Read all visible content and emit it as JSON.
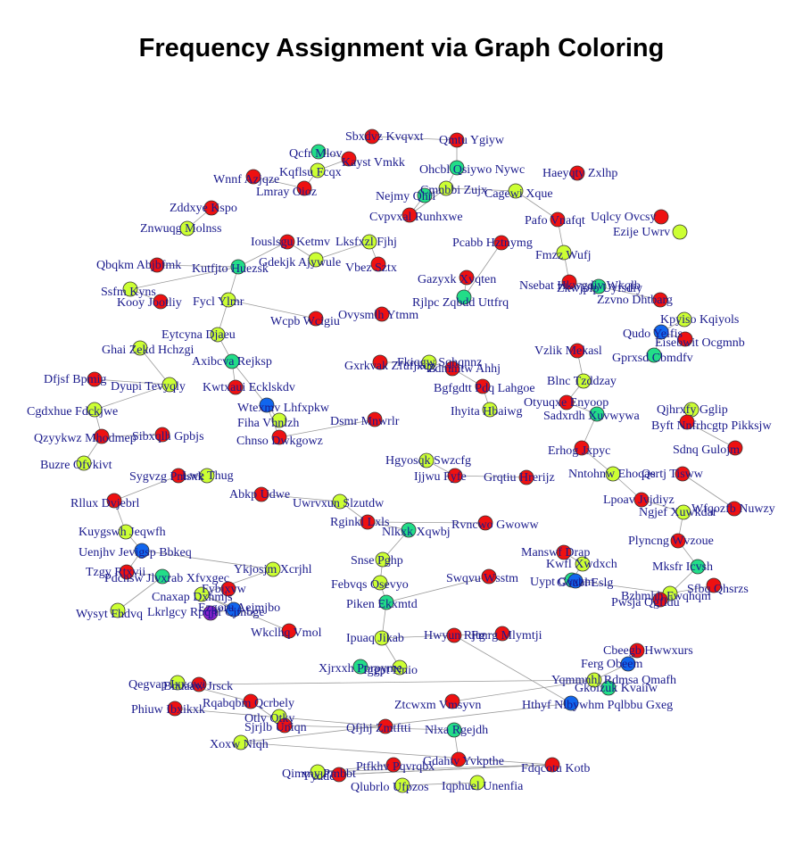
{
  "title": "Frequency Assignment via Graph Coloring",
  "colors": {
    "red": "#ee1111",
    "yellow": "#ccff33",
    "green": "#22dd88",
    "blue": "#1166ee",
    "purple": "#8822cc",
    "label": "#1a1a8c",
    "edge": "#9a9a9a"
  },
  "nodes": [
    {
      "label": "Sbxdvz Kvqvxt",
      "color": "red"
    },
    {
      "label": "Qmtu Ygiyw",
      "color": "red"
    },
    {
      "label": "Qcfr Mlov",
      "color": "green"
    },
    {
      "label": "Kayst Vmkk",
      "color": "red"
    },
    {
      "label": "Kqflsu Fcqx",
      "color": "yellow"
    },
    {
      "label": "Wnnf Azjqze",
      "color": "red"
    },
    {
      "label": "Lmray Oioz",
      "color": "red"
    },
    {
      "label": "Ohcbl Qsiywo Nywc",
      "color": "green"
    },
    {
      "label": "Haeyqty Zxlhp",
      "color": "red"
    },
    {
      "label": "Cmnbbi Zujx",
      "color": "yellow"
    },
    {
      "label": "Nejmy Qhrl",
      "color": "green"
    },
    {
      "label": "Cagewi Xque",
      "color": "yellow"
    },
    {
      "label": "Zddxye Kspo",
      "color": "red"
    },
    {
      "label": "Cvpvxal Runhxwe",
      "color": "red"
    },
    {
      "label": "Pafo Vnafqt",
      "color": "red"
    },
    {
      "label": "Uqlcy Ovcsy",
      "color": "red"
    },
    {
      "label": "Znwuqg Molnss",
      "color": "yellow"
    },
    {
      "label": "Ezije Uwrv",
      "color": "yellow"
    },
    {
      "label": "Iouslsgu Ketmv",
      "color": "red"
    },
    {
      "label": "Lksfxzl Fjhj",
      "color": "yellow"
    },
    {
      "label": "Pcabb Hztnymg",
      "color": "red"
    },
    {
      "label": "Fmzz Wufj",
      "color": "yellow"
    },
    {
      "label": "Gdekjk Ajywule",
      "color": "yellow"
    },
    {
      "label": "Qbqkm Abjbfmk",
      "color": "red"
    },
    {
      "label": "Kutfjto Huezsk",
      "color": "green"
    },
    {
      "label": "Vbez Sztx",
      "color": "red"
    },
    {
      "label": "Gazyxk Xvqten",
      "color": "red"
    },
    {
      "label": "Nsebat Hkwgdiv Wkqlb",
      "color": "red"
    },
    {
      "label": "Zkwjplp Uyfsdiy",
      "color": "green"
    },
    {
      "label": "Ssfm Kyns",
      "color": "yellow"
    },
    {
      "label": "Rjlpc Zqbdd Uttfrq",
      "color": "green"
    },
    {
      "label": "Zzvno Dhtbarg",
      "color": "red"
    },
    {
      "label": "Kooy Jootliy",
      "color": "red"
    },
    {
      "label": "Fycl Ylmr",
      "color": "yellow"
    },
    {
      "label": "Kpyiso Kqiyols",
      "color": "yellow"
    },
    {
      "label": "Wcpb Wcigiu",
      "color": "red"
    },
    {
      "label": "Ovysmlh Ytmm",
      "color": "red"
    },
    {
      "label": "Qudo Yeifis",
      "color": "blue"
    },
    {
      "label": "Eisebwit Ocgmnb",
      "color": "red"
    },
    {
      "label": "Eytcyna Djaeu",
      "color": "yellow"
    },
    {
      "label": "Gprxsd Cbmdfv",
      "color": "green"
    },
    {
      "label": "Ghai Zekd Hchzgi",
      "color": "yellow"
    },
    {
      "label": "Axibcva Rejksp",
      "color": "green"
    },
    {
      "label": "Vzlik Mekasl",
      "color": "red"
    },
    {
      "label": "Gxrkvak Zfufjxqg",
      "color": "red"
    },
    {
      "label": "Fkiqgw Sqhqnnz",
      "color": "yellow"
    },
    {
      "label": "Zdmmtw Ahhj",
      "color": "red"
    },
    {
      "label": "Dfjsf Bpmig",
      "color": "red"
    },
    {
      "label": "Dyupi Tevyqly",
      "color": "yellow"
    },
    {
      "label": "Blnc Tzddzay",
      "color": "yellow"
    },
    {
      "label": "Kwtxaui Ecklskdv",
      "color": "red"
    },
    {
      "label": "Bgfgdtt Pdq Lahgoe",
      "color": "red"
    },
    {
      "label": "Cgdxhue Fdckjwe",
      "color": "yellow"
    },
    {
      "label": "Wtexmv Lhfxpkw",
      "color": "blue"
    },
    {
      "label": "Ihyita Hbaiwg",
      "color": "yellow"
    },
    {
      "label": "Otyuqxe Enyoop",
      "color": "red"
    },
    {
      "label": "Sadxrdh Xuvwywa",
      "color": "green"
    },
    {
      "label": "Qjhrxfy Gglip",
      "color": "yellow"
    },
    {
      "label": "Byft Nnfrhcgtp Pikksjw",
      "color": "red"
    },
    {
      "label": "Fiha Vhnlzh",
      "color": "yellow"
    },
    {
      "label": "Dsmr Mnwrlr",
      "color": "red"
    },
    {
      "label": "Chnso Dwkgowz",
      "color": "red"
    },
    {
      "label": "Qzyykwz Mhodmep",
      "color": "red"
    },
    {
      "label": "Sibxqlh Gpbjs",
      "color": "red"
    },
    {
      "label": "Sdnq Gulojm",
      "color": "red"
    },
    {
      "label": "Erhog Jxpyc",
      "color": "red"
    },
    {
      "label": "Buzre Ofvkivt",
      "color": "yellow"
    },
    {
      "label": "Hgyosqk Swzcfg",
      "color": "yellow"
    },
    {
      "label": "Ijjwu Fyfe",
      "color": "red"
    },
    {
      "label": "Grqtiu Hrerijz",
      "color": "red"
    },
    {
      "label": "Nntohnw Ehoqae",
      "color": "yellow"
    },
    {
      "label": "Qsrtj Tisww",
      "color": "red"
    },
    {
      "label": "Sygvzg Pmsxk",
      "color": "red"
    },
    {
      "label": "Lwe Thug",
      "color": "yellow"
    },
    {
      "label": "Abkp Udwe",
      "color": "red"
    },
    {
      "label": "Lpoav Jvjdiyz",
      "color": "red"
    },
    {
      "label": "Rllux Dvjebrl",
      "color": "red"
    },
    {
      "label": "Uwrvxun Slzutdw",
      "color": "yellow"
    },
    {
      "label": "Ngjef Xuwkdar",
      "color": "yellow"
    },
    {
      "label": "Wfqozfb Nuwzy",
      "color": "red"
    },
    {
      "label": "Rginkl Lxls",
      "color": "red"
    },
    {
      "label": "Nlkxk Xqwbj",
      "color": "green"
    },
    {
      "label": "Rvncwo Gwoww",
      "color": "red"
    },
    {
      "label": "Kuygswh Jeqwfh",
      "color": "yellow"
    },
    {
      "label": "Plyncng Wvzoue",
      "color": "red"
    },
    {
      "label": "Uenjhv Jevigsp Bbkeq",
      "color": "blue"
    },
    {
      "label": "Snse Pghp",
      "color": "yellow"
    },
    {
      "label": "Manswf Drap",
      "color": "red"
    },
    {
      "label": "Kwfl Xwdxch",
      "color": "yellow"
    },
    {
      "label": "Mksfr Icvsh",
      "color": "green"
    },
    {
      "label": "Tzgy Rtxvii",
      "color": "red"
    },
    {
      "label": "Ykjosjm Xcrjhl",
      "color": "yellow"
    },
    {
      "label": "Swqvu Wsstm",
      "color": "red"
    },
    {
      "label": "Pdcnsw Jlvxrab Xfvxgec",
      "color": "green"
    },
    {
      "label": "Uypt Cvxzm",
      "color": "green"
    },
    {
      "label": "Goubl Eslg",
      "color": "blue"
    },
    {
      "label": "Bzhmhh Fwqhqm",
      "color": "yellow"
    },
    {
      "label": "Sfbq Qhsrzs",
      "color": "red"
    },
    {
      "label": "Cnaxap Dxhmjs",
      "color": "yellow"
    },
    {
      "label": "Fybjxvw",
      "color": "red"
    },
    {
      "label": "Febvqs Osevyo",
      "color": "yellow"
    },
    {
      "label": "Pwsja Qgfldu",
      "color": "red"
    },
    {
      "label": "Lkrlgcy Rpqjtf Cjmbge",
      "color": "purple"
    },
    {
      "label": "Ezgoru Aejmjbo",
      "color": "blue"
    },
    {
      "label": "Piken Ekxmtd",
      "color": "green"
    },
    {
      "label": "Wysyt Fhdvq",
      "color": "yellow"
    },
    {
      "label": "Wkclhq Vmol",
      "color": "red"
    },
    {
      "label": "Ipuaq Jikab",
      "color": "yellow"
    },
    {
      "label": "Hwyun Rjtg",
      "color": "red"
    },
    {
      "label": "Fmrg Mlymtji",
      "color": "red"
    },
    {
      "label": "Cbeegb Hwwxurs",
      "color": "red"
    },
    {
      "label": "Xjrxxh Porpyme",
      "color": "green"
    },
    {
      "label": "Iggpt Nnio",
      "color": "yellow"
    },
    {
      "label": "Ferg Obeem",
      "color": "blue"
    },
    {
      "label": "Yqmmnhl Rdmsa Qmafh",
      "color": "yellow"
    },
    {
      "label": "Qegvap Ixxowi",
      "color": "yellow"
    },
    {
      "label": "Bnuaaw Jrsck",
      "color": "red"
    },
    {
      "label": "Gkoizuk Kvaiiw",
      "color": "green"
    },
    {
      "label": "Rqabqbm Qcrbely",
      "color": "red"
    },
    {
      "label": "Phiuw Ibxikxk",
      "color": "red"
    },
    {
      "label": "Ztcwxm Vmsyvn",
      "color": "red"
    },
    {
      "label": "Hthyf Nlbywhm Pqlbbu Gxeg",
      "color": "blue"
    },
    {
      "label": "Otlv Otky",
      "color": "yellow"
    },
    {
      "label": "Sjrjlb Uniqn",
      "color": "red"
    },
    {
      "label": "Qfjhj Zmtftti",
      "color": "red"
    },
    {
      "label": "Nlxa Rgejdh",
      "color": "green"
    },
    {
      "label": "Xoxw Nlqh",
      "color": "yellow"
    },
    {
      "label": "Ptfkhv Pqvrqbx",
      "color": "red"
    },
    {
      "label": "Gdahtv Yvkpthe",
      "color": "red"
    },
    {
      "label": "Fdqcotu Kotb",
      "color": "red"
    },
    {
      "label": "Qimmy Pmbbt",
      "color": "yellow"
    },
    {
      "label": "Yyddc",
      "color": "red"
    },
    {
      "label": "Iqphuel Unenfia",
      "color": "yellow"
    },
    {
      "label": "Qlubrlo Ufpzos",
      "color": "yellow"
    }
  ]
}
